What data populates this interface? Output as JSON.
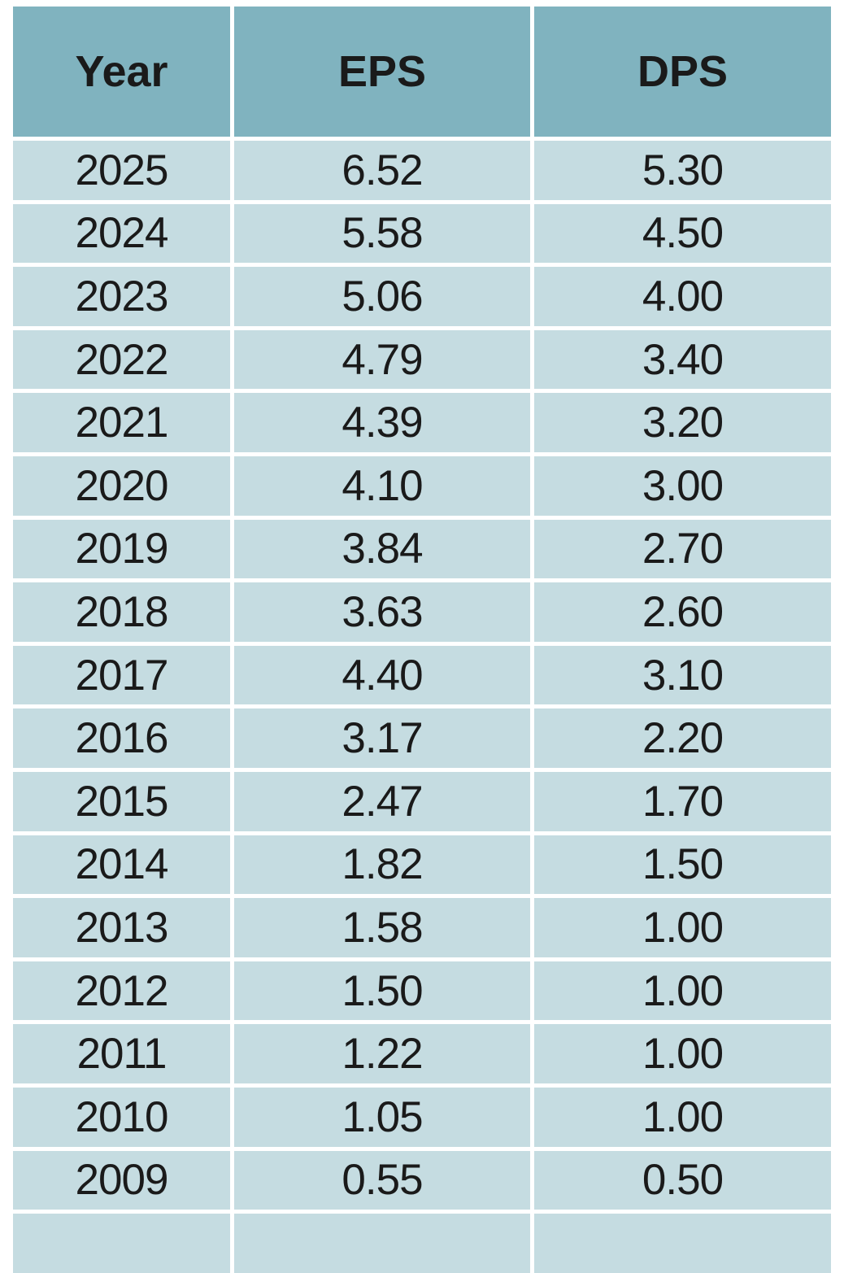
{
  "page": {
    "background": "#ffffff"
  },
  "colors": {
    "header_bg": "#80b3bf",
    "row_bg": "#c5dce1",
    "gap": "#ffffff",
    "text": "#1a1a1a"
  },
  "table": {
    "headers": [
      "Year",
      "EPS",
      "DPS"
    ],
    "rows": [
      {
        "year": "2025",
        "eps": "6.52",
        "dps": "5.30"
      },
      {
        "year": "2024",
        "eps": "5.58",
        "dps": "4.50"
      },
      {
        "year": "2023",
        "eps": "5.06",
        "dps": "4.00"
      },
      {
        "year": "2022",
        "eps": "4.79",
        "dps": "3.40"
      },
      {
        "year": "2021",
        "eps": "4.39",
        "dps": "3.20"
      },
      {
        "year": "2020",
        "eps": "4.10",
        "dps": "3.00"
      },
      {
        "year": "2019",
        "eps": "3.84",
        "dps": "2.70"
      },
      {
        "year": "2018",
        "eps": "3.63",
        "dps": "2.60"
      },
      {
        "year": "2017",
        "eps": "4.40",
        "dps": "3.10"
      },
      {
        "year": "2016",
        "eps": "3.17",
        "dps": "2.20"
      },
      {
        "year": "2015",
        "eps": "2.47",
        "dps": "1.70"
      },
      {
        "year": "2014",
        "eps": "1.82",
        "dps": "1.50"
      },
      {
        "year": "2013",
        "eps": "1.58",
        "dps": "1.00"
      },
      {
        "year": "2012",
        "eps": "1.50",
        "dps": "1.00"
      },
      {
        "year": "2011",
        "eps": "1.22",
        "dps": "1.00"
      },
      {
        "year": "2010",
        "eps": "1.05",
        "dps": "1.00"
      },
      {
        "year": "2009",
        "eps": "0.55",
        "dps": "0.50"
      }
    ]
  },
  "chart_data": {
    "type": "table",
    "title": "",
    "columns": [
      "Year",
      "EPS",
      "DPS"
    ],
    "categories": [
      "2025",
      "2024",
      "2023",
      "2022",
      "2021",
      "2020",
      "2019",
      "2018",
      "2017",
      "2016",
      "2015",
      "2014",
      "2013",
      "2012",
      "2011",
      "2010",
      "2009"
    ],
    "series": [
      {
        "name": "EPS",
        "values": [
          6.52,
          5.58,
          5.06,
          4.79,
          4.39,
          4.1,
          3.84,
          3.63,
          4.4,
          3.17,
          2.47,
          1.82,
          1.58,
          1.5,
          1.22,
          1.05,
          0.55
        ]
      },
      {
        "name": "DPS",
        "values": [
          5.3,
          4.5,
          4.0,
          3.4,
          3.2,
          3.0,
          2.7,
          2.6,
          3.1,
          2.2,
          1.7,
          1.5,
          1.0,
          1.0,
          1.0,
          1.0,
          0.5
        ]
      }
    ]
  }
}
